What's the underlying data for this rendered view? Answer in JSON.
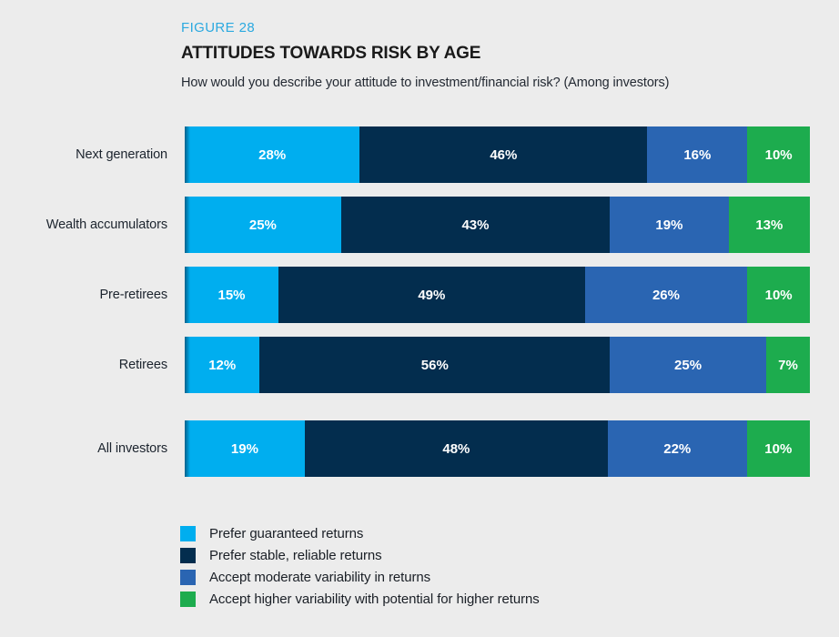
{
  "figure": {
    "label": "FIGURE 28",
    "title": "ATTITUDES TOWARDS RISK BY AGE",
    "subtitle": "How would you describe your attitude to investment/financial risk? (Among investors)"
  },
  "chart_data": {
    "type": "bar",
    "orientation": "horizontal",
    "stacked": true,
    "unit": "%",
    "xlim": [
      0,
      100
    ],
    "grid": false,
    "legend_position": "bottom-left",
    "data_labels": "inside-center, white, bold, value + %",
    "categories": [
      "Next generation",
      "Wealth accumulators",
      "Pre-retirees",
      "Retirees",
      "All investors"
    ],
    "series": [
      {
        "name": "Prefer guaranteed returns",
        "color": "#00AEEF",
        "values": [
          28,
          25,
          15,
          12,
          19
        ]
      },
      {
        "name": "Prefer stable, reliable returns",
        "color": "#032D4E",
        "values": [
          46,
          43,
          49,
          56,
          48
        ]
      },
      {
        "name": "Accept moderate variability in returns",
        "color": "#2A65B2",
        "values": [
          16,
          19,
          26,
          25,
          22
        ]
      },
      {
        "name": "Accept higher variability with potential for higher returns",
        "color": "#1DAC4E",
        "values": [
          10,
          13,
          10,
          7,
          10
        ]
      }
    ]
  },
  "colors": {
    "background": "#ECECEC",
    "figure_label": "#2BA9E0",
    "title_text": "#1A1A1A",
    "body_text": "#242A33",
    "bar_value_text": "#FFFFFF"
  }
}
